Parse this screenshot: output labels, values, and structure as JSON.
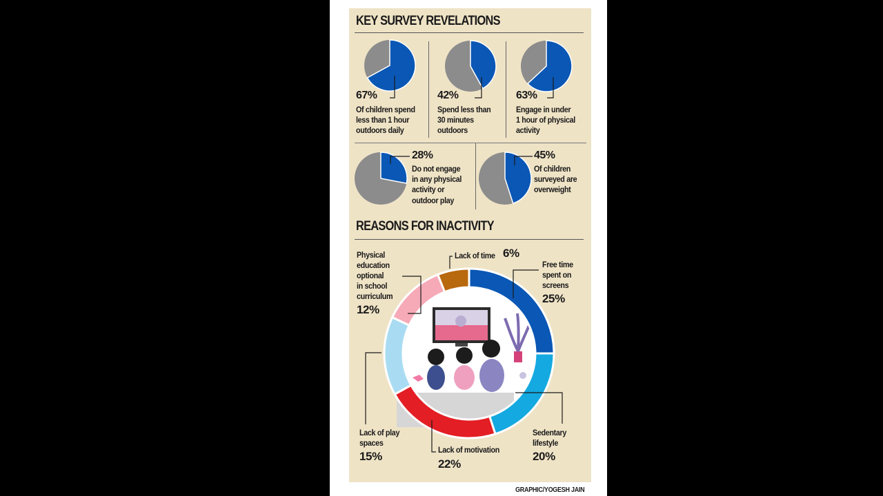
{
  "colors": {
    "blue": "#0a57b5",
    "grey": "#8c8c8c",
    "panel": "#efe3c6"
  },
  "headings": {
    "survey": "KEY SURVEY REVELATIONS",
    "reasons": "REASONS FOR INACTIVITY"
  },
  "credit": "GRAPHIC/YOGESH JAIN",
  "chart_data": [
    {
      "type": "pie",
      "title": "KEY SURVEY REVELATIONS",
      "items": [
        {
          "value": 67,
          "percent_label": "67%",
          "caption": [
            "Of children spend",
            "less than 1 hour",
            "outdoors daily"
          ]
        },
        {
          "value": 42,
          "percent_label": "42%",
          "caption": [
            "Spend less than",
            "30 minutes",
            "outdoors"
          ]
        },
        {
          "value": 63,
          "percent_label": "63%",
          "caption": [
            "Engage in under",
            "1 hour of physical",
            "activity"
          ]
        },
        {
          "value": 28,
          "percent_label": "28%",
          "caption": [
            "Do not engage",
            "in any physical",
            "activity or",
            "outdoor play"
          ]
        },
        {
          "value": 45,
          "percent_label": "45%",
          "caption": [
            "Of children",
            "surveyed are",
            "overweight"
          ]
        }
      ]
    },
    {
      "type": "pie",
      "title": "REASONS FOR INACTIVITY",
      "donut": true,
      "slices": [
        {
          "label": [
            "Free time",
            "spent on",
            "screens"
          ],
          "value": 25,
          "percent_label": "25%",
          "color": "#0a57b5"
        },
        {
          "label": [
            "Sedentary",
            "lifestyle"
          ],
          "value": 20,
          "percent_label": "20%",
          "color": "#14a9e0"
        },
        {
          "label": [
            "Lack of motivation"
          ],
          "value": 22,
          "percent_label": "22%",
          "color": "#e31e24"
        },
        {
          "label": [
            "Lack of play",
            "spaces"
          ],
          "value": 15,
          "percent_label": "15%",
          "color": "#a9dcf2"
        },
        {
          "label": [
            "Physical",
            "education",
            "optional",
            "in school",
            "curriculum"
          ],
          "value": 12,
          "percent_label": "12%",
          "color": "#f6aab7"
        },
        {
          "label": [
            "Lack of time"
          ],
          "value": 6,
          "percent_label": "6%",
          "color": "#b8680d"
        }
      ]
    }
  ]
}
